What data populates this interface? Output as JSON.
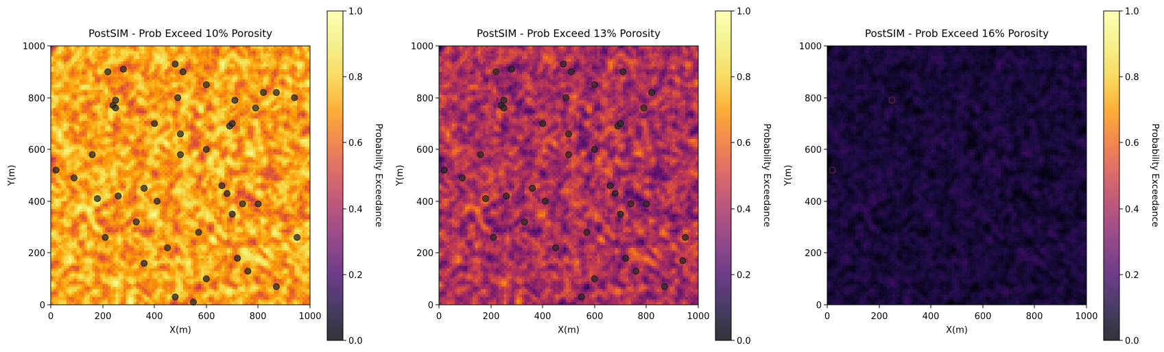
{
  "colorbar_ticks": [
    "0.0",
    "0.2",
    "0.4",
    "0.6",
    "0.8",
    "1.0"
  ],
  "chart_data": [
    {
      "type": "heatmap",
      "title": "PostSIM - Prob Exceed 10% Porosity",
      "xlabel": "X(m)",
      "ylabel": "Y(m)",
      "xlim": [
        0,
        1000
      ],
      "ylim": [
        0,
        1000
      ],
      "x_ticks": [
        "0",
        "200",
        "400",
        "600",
        "800",
        "1000"
      ],
      "y_ticks": [
        "0",
        "200",
        "400",
        "600",
        "800",
        "1000"
      ],
      "colormap": "inferno",
      "colorbar_label": "Probability Exceedance",
      "colorbar_range": [
        0,
        1
      ],
      "grid": false,
      "field_mean_probability": 0.72,
      "field_variability": 0.24,
      "well_locations": {
        "x": [
          20,
          90,
          160,
          180,
          210,
          220,
          240,
          250,
          250,
          260,
          280,
          330,
          360,
          400,
          410,
          450,
          480,
          490,
          500,
          500,
          510,
          550,
          570,
          600,
          600,
          600,
          660,
          680,
          690,
          700,
          700,
          710,
          720,
          740,
          760,
          790,
          800,
          820,
          870,
          940,
          950,
          870,
          480,
          360
        ],
        "y": [
          520,
          490,
          580,
          410,
          260,
          900,
          770,
          760,
          790,
          420,
          910,
          320,
          450,
          700,
          400,
          220,
          930,
          800,
          660,
          580,
          900,
          10,
          280,
          850,
          600,
          100,
          460,
          430,
          690,
          350,
          700,
          790,
          180,
          390,
          130,
          760,
          390,
          820,
          70,
          800,
          260,
          820,
          30,
          160
        ]
      }
    },
    {
      "type": "heatmap",
      "title": "PostSIM - Prob Exceed 13% Porosity",
      "xlabel": "X(m)",
      "ylabel": "Y(m)",
      "xlim": [
        0,
        1000
      ],
      "ylim": [
        0,
        1000
      ],
      "x_ticks": [
        "0",
        "200",
        "400",
        "600",
        "800",
        "1000"
      ],
      "y_ticks": [
        "0",
        "200",
        "400",
        "600",
        "800",
        "1000"
      ],
      "colormap": "inferno",
      "colorbar_label": "Probability Exceedance",
      "colorbar_range": [
        0,
        1
      ],
      "grid": false,
      "field_mean_probability": 0.42,
      "field_variability": 0.24,
      "well_locations": {
        "x": [
          20,
          90,
          160,
          180,
          210,
          220,
          240,
          250,
          250,
          260,
          280,
          330,
          360,
          400,
          410,
          450,
          480,
          490,
          500,
          500,
          510,
          550,
          570,
          600,
          600,
          600,
          660,
          680,
          690,
          700,
          700,
          710,
          720,
          740,
          760,
          790,
          800,
          820,
          870,
          940,
          950
        ],
        "y": [
          520,
          490,
          580,
          410,
          260,
          900,
          770,
          760,
          790,
          420,
          910,
          320,
          450,
          700,
          400,
          220,
          930,
          800,
          660,
          580,
          900,
          30,
          280,
          850,
          600,
          100,
          460,
          430,
          690,
          350,
          700,
          900,
          180,
          390,
          130,
          760,
          390,
          820,
          70,
          170,
          260
        ]
      }
    },
    {
      "type": "heatmap",
      "title": "PostSIM - Prob Exceed 16% Porosity",
      "xlabel": "X(m)",
      "ylabel": "Y(m)",
      "xlim": [
        0,
        1000
      ],
      "ylim": [
        0,
        1000
      ],
      "x_ticks": [
        "0",
        "200",
        "400",
        "600",
        "800",
        "1000"
      ],
      "y_ticks": [
        "0",
        "200",
        "400",
        "600",
        "800",
        "1000"
      ],
      "colormap": "inferno",
      "colorbar_label": "Probability Exceedance",
      "colorbar_range": [
        0,
        1
      ],
      "grid": false,
      "field_mean_probability": 0.09,
      "field_variability": 0.08,
      "well_locations": {
        "x": [
          20,
          250
        ],
        "y": [
          520,
          790
        ]
      }
    }
  ]
}
